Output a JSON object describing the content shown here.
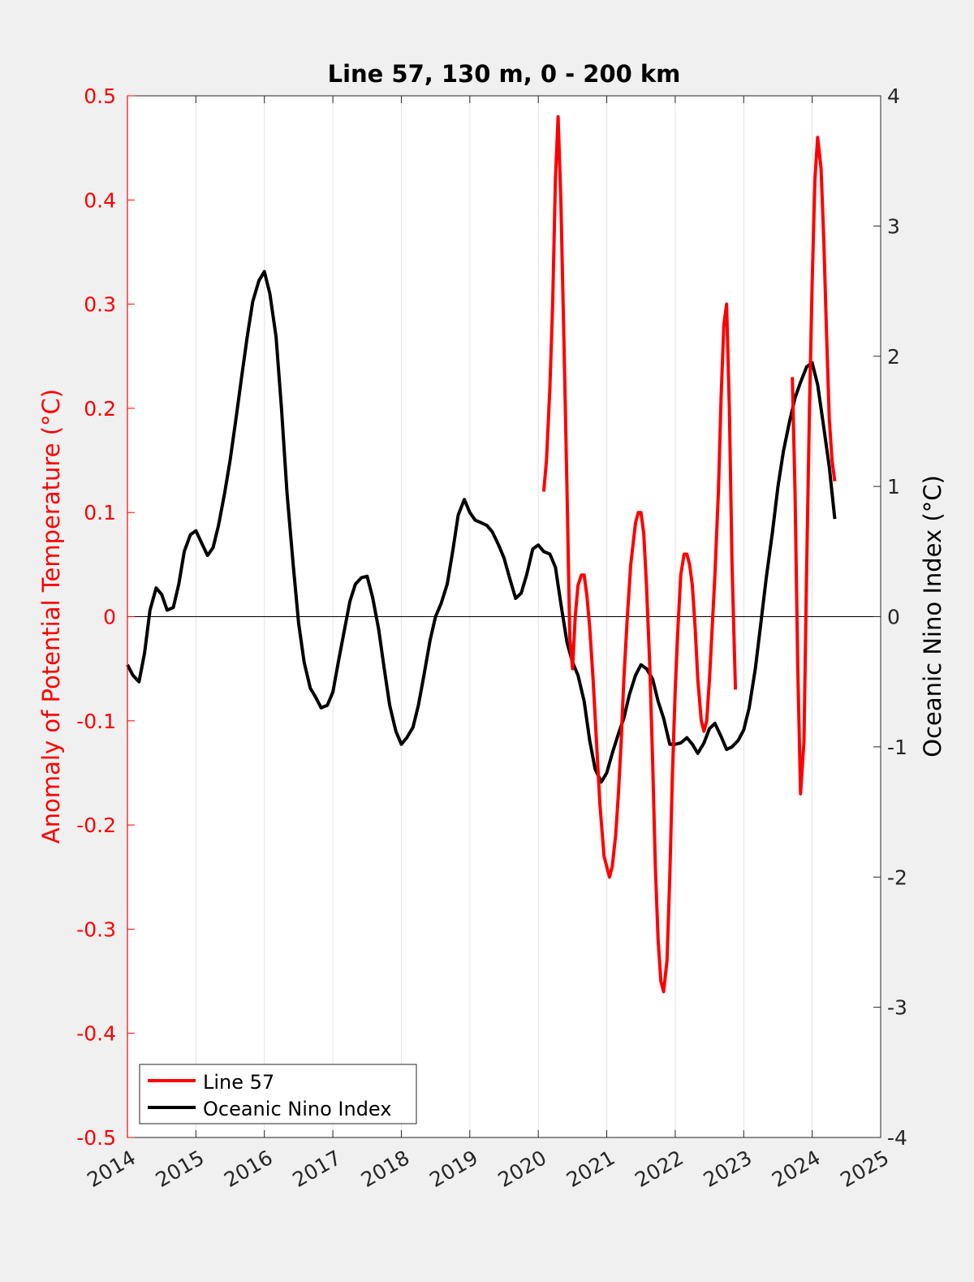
{
  "chart_data": {
    "type": "line",
    "title": "Line 57, 130 m, 0 - 200 km",
    "xlabel": "",
    "ylabel_left": "Anomaly of Potential Temperature (°C)",
    "ylabel_right": "Oceanic Nino Index (°C)",
    "xlim": [
      2014,
      2025
    ],
    "ylim_left": [
      -0.5,
      0.5
    ],
    "ylim_right": [
      -4,
      4
    ],
    "x_ticks": [
      "2014",
      "2015",
      "2016",
      "2017",
      "2018",
      "2019",
      "2020",
      "2021",
      "2022",
      "2023",
      "2024",
      "2025"
    ],
    "y_left_ticks": [
      "0.5",
      "0.4",
      "0.3",
      "0.2",
      "0.1",
      "0",
      "-0.1",
      "-0.2",
      "-0.3",
      "-0.4",
      "-0.5"
    ],
    "y_right_ticks": [
      "4",
      "3",
      "2",
      "1",
      "0",
      "-1",
      "-2",
      "-3",
      "-4"
    ],
    "grid": "vertical",
    "zero_line": true,
    "legend_position": "bottom-left",
    "colors": {
      "line57": "#ff0000",
      "oni": "#000000",
      "left_axis": "#ff0000",
      "right_axis": "#000000"
    },
    "series": [
      {
        "name": "Line 57",
        "axis": "left",
        "segments": [
          [
            [
              2020.08,
              0.12
            ],
            [
              2020.12,
              0.15
            ],
            [
              2020.17,
              0.22
            ],
            [
              2020.21,
              0.3
            ],
            [
              2020.25,
              0.42
            ],
            [
              2020.29,
              0.48
            ],
            [
              2020.33,
              0.4
            ],
            [
              2020.38,
              0.25
            ],
            [
              2020.42,
              0.12
            ],
            [
              2020.46,
              -0.02
            ],
            [
              2020.5,
              -0.05
            ],
            [
              2020.54,
              0.0
            ],
            [
              2020.58,
              0.03
            ],
            [
              2020.63,
              0.04
            ],
            [
              2020.67,
              0.04
            ],
            [
              2020.71,
              0.02
            ],
            [
              2020.75,
              -0.01
            ],
            [
              2020.8,
              -0.06
            ],
            [
              2020.85,
              -0.12
            ],
            [
              2020.9,
              -0.18
            ],
            [
              2020.96,
              -0.23
            ],
            [
              2021.04,
              -0.25
            ],
            [
              2021.08,
              -0.24
            ],
            [
              2021.13,
              -0.21
            ],
            [
              2021.17,
              -0.17
            ],
            [
              2021.21,
              -0.12
            ],
            [
              2021.25,
              -0.06
            ],
            [
              2021.3,
              0.0
            ],
            [
              2021.35,
              0.05
            ],
            [
              2021.42,
              0.09
            ],
            [
              2021.46,
              0.1
            ],
            [
              2021.5,
              0.1
            ],
            [
              2021.54,
              0.08
            ],
            [
              2021.58,
              0.03
            ],
            [
              2021.63,
              -0.05
            ],
            [
              2021.67,
              -0.14
            ],
            [
              2021.71,
              -0.24
            ],
            [
              2021.75,
              -0.31
            ],
            [
              2021.79,
              -0.35
            ],
            [
              2021.83,
              -0.36
            ],
            [
              2021.88,
              -0.33
            ],
            [
              2021.92,
              -0.25
            ],
            [
              2021.96,
              -0.15
            ],
            [
              2022.0,
              -0.07
            ],
            [
              2022.04,
              -0.01
            ],
            [
              2022.08,
              0.04
            ],
            [
              2022.13,
              0.06
            ],
            [
              2022.17,
              0.06
            ],
            [
              2022.21,
              0.05
            ],
            [
              2022.25,
              0.03
            ],
            [
              2022.29,
              -0.01
            ],
            [
              2022.33,
              -0.06
            ],
            [
              2022.38,
              -0.1
            ],
            [
              2022.42,
              -0.11
            ],
            [
              2022.46,
              -0.1
            ],
            [
              2022.5,
              -0.06
            ],
            [
              2022.54,
              -0.01
            ],
            [
              2022.58,
              0.04
            ],
            [
              2022.63,
              0.12
            ],
            [
              2022.67,
              0.21
            ],
            [
              2022.71,
              0.28
            ],
            [
              2022.75,
              0.3
            ],
            [
              2022.79,
              0.2
            ],
            [
              2022.83,
              0.05
            ],
            [
              2022.88,
              -0.07
            ]
          ],
          [
            [
              2023.71,
              0.23
            ],
            [
              2023.75,
              0.12
            ],
            [
              2023.79,
              -0.05
            ],
            [
              2023.83,
              -0.17
            ],
            [
              2023.88,
              -0.12
            ],
            [
              2023.92,
              0.05
            ],
            [
              2023.96,
              0.2
            ],
            [
              2024.0,
              0.32
            ],
            [
              2024.04,
              0.42
            ],
            [
              2024.08,
              0.46
            ],
            [
              2024.13,
              0.43
            ],
            [
              2024.17,
              0.36
            ],
            [
              2024.21,
              0.27
            ],
            [
              2024.25,
              0.19
            ],
            [
              2024.29,
              0.15
            ],
            [
              2024.33,
              0.13
            ]
          ]
        ]
      },
      {
        "name": "Oceanic Nino Index",
        "axis": "right",
        "segments": [
          [
            [
              2014.0,
              -0.37
            ],
            [
              2014.08,
              -0.45
            ],
            [
              2014.17,
              -0.5
            ],
            [
              2014.25,
              -0.28
            ],
            [
              2014.33,
              0.05
            ],
            [
              2014.42,
              0.22
            ],
            [
              2014.5,
              0.17
            ],
            [
              2014.58,
              0.05
            ],
            [
              2014.67,
              0.07
            ],
            [
              2014.75,
              0.25
            ],
            [
              2014.83,
              0.5
            ],
            [
              2014.92,
              0.63
            ],
            [
              2015.0,
              0.66
            ],
            [
              2015.08,
              0.57
            ],
            [
              2015.17,
              0.47
            ],
            [
              2015.25,
              0.53
            ],
            [
              2015.33,
              0.7
            ],
            [
              2015.42,
              0.95
            ],
            [
              2015.5,
              1.2
            ],
            [
              2015.58,
              1.5
            ],
            [
              2015.67,
              1.85
            ],
            [
              2015.75,
              2.15
            ],
            [
              2015.83,
              2.42
            ],
            [
              2015.92,
              2.58
            ],
            [
              2016.0,
              2.65
            ],
            [
              2016.08,
              2.48
            ],
            [
              2016.17,
              2.15
            ],
            [
              2016.25,
              1.6
            ],
            [
              2016.33,
              0.95
            ],
            [
              2016.42,
              0.4
            ],
            [
              2016.5,
              -0.05
            ],
            [
              2016.58,
              -0.35
            ],
            [
              2016.67,
              -0.55
            ],
            [
              2016.75,
              -0.62
            ],
            [
              2016.83,
              -0.7
            ],
            [
              2016.92,
              -0.68
            ],
            [
              2017.0,
              -0.58
            ],
            [
              2017.08,
              -0.35
            ],
            [
              2017.17,
              -0.1
            ],
            [
              2017.25,
              0.12
            ],
            [
              2017.33,
              0.25
            ],
            [
              2017.42,
              0.3
            ],
            [
              2017.5,
              0.31
            ],
            [
              2017.58,
              0.15
            ],
            [
              2017.67,
              -0.1
            ],
            [
              2017.75,
              -0.4
            ],
            [
              2017.83,
              -0.68
            ],
            [
              2017.92,
              -0.88
            ],
            [
              2018.0,
              -0.98
            ],
            [
              2018.08,
              -0.93
            ],
            [
              2018.17,
              -0.85
            ],
            [
              2018.25,
              -0.68
            ],
            [
              2018.33,
              -0.45
            ],
            [
              2018.42,
              -0.18
            ],
            [
              2018.5,
              0.0
            ],
            [
              2018.58,
              0.1
            ],
            [
              2018.67,
              0.25
            ],
            [
              2018.75,
              0.5
            ],
            [
              2018.83,
              0.78
            ],
            [
              2018.92,
              0.9
            ],
            [
              2019.0,
              0.8
            ],
            [
              2019.08,
              0.74
            ],
            [
              2019.17,
              0.72
            ],
            [
              2019.25,
              0.7
            ],
            [
              2019.33,
              0.65
            ],
            [
              2019.42,
              0.55
            ],
            [
              2019.5,
              0.45
            ],
            [
              2019.58,
              0.3
            ],
            [
              2019.67,
              0.14
            ],
            [
              2019.75,
              0.18
            ],
            [
              2019.83,
              0.32
            ],
            [
              2019.92,
              0.52
            ],
            [
              2020.0,
              0.55
            ],
            [
              2020.08,
              0.5
            ],
            [
              2020.17,
              0.48
            ],
            [
              2020.25,
              0.38
            ],
            [
              2020.33,
              0.1
            ],
            [
              2020.42,
              -0.2
            ],
            [
              2020.5,
              -0.35
            ],
            [
              2020.58,
              -0.45
            ],
            [
              2020.67,
              -0.65
            ],
            [
              2020.75,
              -0.95
            ],
            [
              2020.83,
              -1.17
            ],
            [
              2020.92,
              -1.27
            ],
            [
              2021.0,
              -1.2
            ],
            [
              2021.08,
              -1.05
            ],
            [
              2021.17,
              -0.9
            ],
            [
              2021.25,
              -0.78
            ],
            [
              2021.33,
              -0.6
            ],
            [
              2021.42,
              -0.45
            ],
            [
              2021.5,
              -0.37
            ],
            [
              2021.58,
              -0.4
            ],
            [
              2021.67,
              -0.48
            ],
            [
              2021.75,
              -0.65
            ],
            [
              2021.83,
              -0.78
            ],
            [
              2021.92,
              -0.98
            ],
            [
              2022.0,
              -0.98
            ],
            [
              2022.08,
              -0.97
            ],
            [
              2022.17,
              -0.93
            ],
            [
              2022.25,
              -0.98
            ],
            [
              2022.33,
              -1.05
            ],
            [
              2022.42,
              -0.97
            ],
            [
              2022.5,
              -0.86
            ],
            [
              2022.58,
              -0.82
            ],
            [
              2022.67,
              -0.92
            ],
            [
              2022.75,
              -1.02
            ],
            [
              2022.83,
              -1.0
            ],
            [
              2022.92,
              -0.95
            ],
            [
              2023.0,
              -0.87
            ],
            [
              2023.08,
              -0.7
            ],
            [
              2023.17,
              -0.4
            ],
            [
              2023.25,
              -0.05
            ],
            [
              2023.33,
              0.3
            ],
            [
              2023.42,
              0.65
            ],
            [
              2023.5,
              1.0
            ],
            [
              2023.58,
              1.27
            ],
            [
              2023.67,
              1.5
            ],
            [
              2023.75,
              1.68
            ],
            [
              2023.83,
              1.8
            ],
            [
              2023.92,
              1.92
            ],
            [
              2024.0,
              1.95
            ],
            [
              2024.08,
              1.78
            ],
            [
              2024.17,
              1.45
            ],
            [
              2024.25,
              1.15
            ],
            [
              2024.33,
              0.75
            ]
          ]
        ]
      }
    ]
  }
}
